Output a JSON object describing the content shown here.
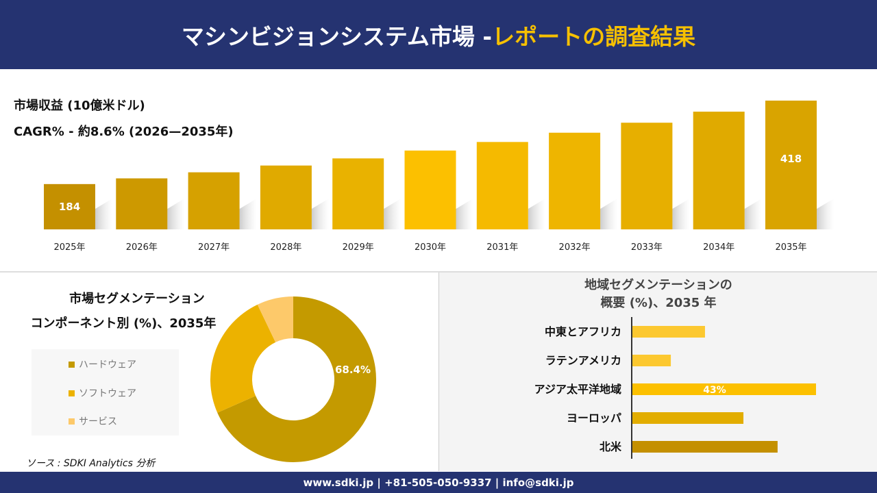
{
  "header": {
    "title_main": "マシンビジョンシステム市場 -",
    "title_accent": "レポートの調査結果"
  },
  "colors": {
    "header_bg": "#253371",
    "accent": "#f6c000",
    "bar_dark": "#c49000",
    "bar_light": "#fcc000"
  },
  "chart_data": [
    {
      "type": "bar",
      "title": "市場収益 (10億米ドル)",
      "subtitle": "CAGR% - 約8.6% (2026—2035年)",
      "categories": [
        "2025年",
        "2026年",
        "2027年",
        "2028年",
        "2029年",
        "2030年",
        "2031年",
        "2032年",
        "2033年",
        "2034年",
        "2035年"
      ],
      "values": [
        184,
        200,
        217,
        236,
        256,
        278,
        302,
        328,
        356,
        387,
        418
      ],
      "data_labels": {
        "0": "184",
        "10": "418"
      }
    },
    {
      "type": "pie",
      "variant": "donut",
      "title_line1": "市場セグメンテーション",
      "title_line2": "コンポーネント別 (%)、2035年",
      "slices": [
        {
          "name": "ハードウェア",
          "value": 68.4,
          "label": "68.4%",
          "color": "#c49a00"
        },
        {
          "name": "ソフトウェア",
          "value": 24.5,
          "color": "#ecb200"
        },
        {
          "name": "サービス",
          "value": 7.1,
          "color": "#fdc96a"
        }
      ],
      "legend": "left"
    },
    {
      "type": "bar",
      "orientation": "horizontal",
      "title_line1": "地域セグメンテーションの",
      "title_line2": "概要 (%)、2035 年",
      "categories": [
        "中東とアフリカ",
        "ラテンアメリカ",
        "アジア太平洋地域",
        "ヨーロッパ",
        "北米"
      ],
      "values": [
        17,
        9,
        43,
        26,
        34
      ],
      "colors": [
        "#fcc830",
        "#fcc830",
        "#fcc000",
        "#e2ad00",
        "#c49000"
      ],
      "data_labels": {
        "2": "43%"
      }
    }
  ],
  "source": "ソース : SDKI Analytics 分析",
  "footer": "www.sdki.jp | +81-505-050-9337 | info@sdki.jp"
}
